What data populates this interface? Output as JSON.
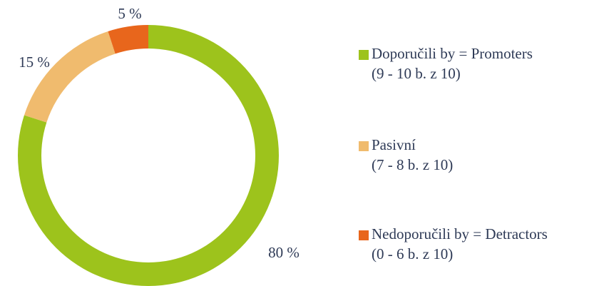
{
  "chart_data": {
    "type": "donut",
    "categories": [
      "Doporučili by = Promoters",
      "Pasivní",
      "Nedoporučili by = Detractors"
    ],
    "category_notes": [
      "(9 - 10 b. z 10)",
      "(7 - 8 b. z 10)",
      "(0 - 6 b. z 10)"
    ],
    "values": [
      80,
      15,
      5
    ],
    "value_labels": [
      "80 %",
      "15 %",
      "5 %"
    ],
    "colors": [
      "#9dc31c",
      "#f0bb6e",
      "#e8661c"
    ],
    "legend": "right"
  }
}
